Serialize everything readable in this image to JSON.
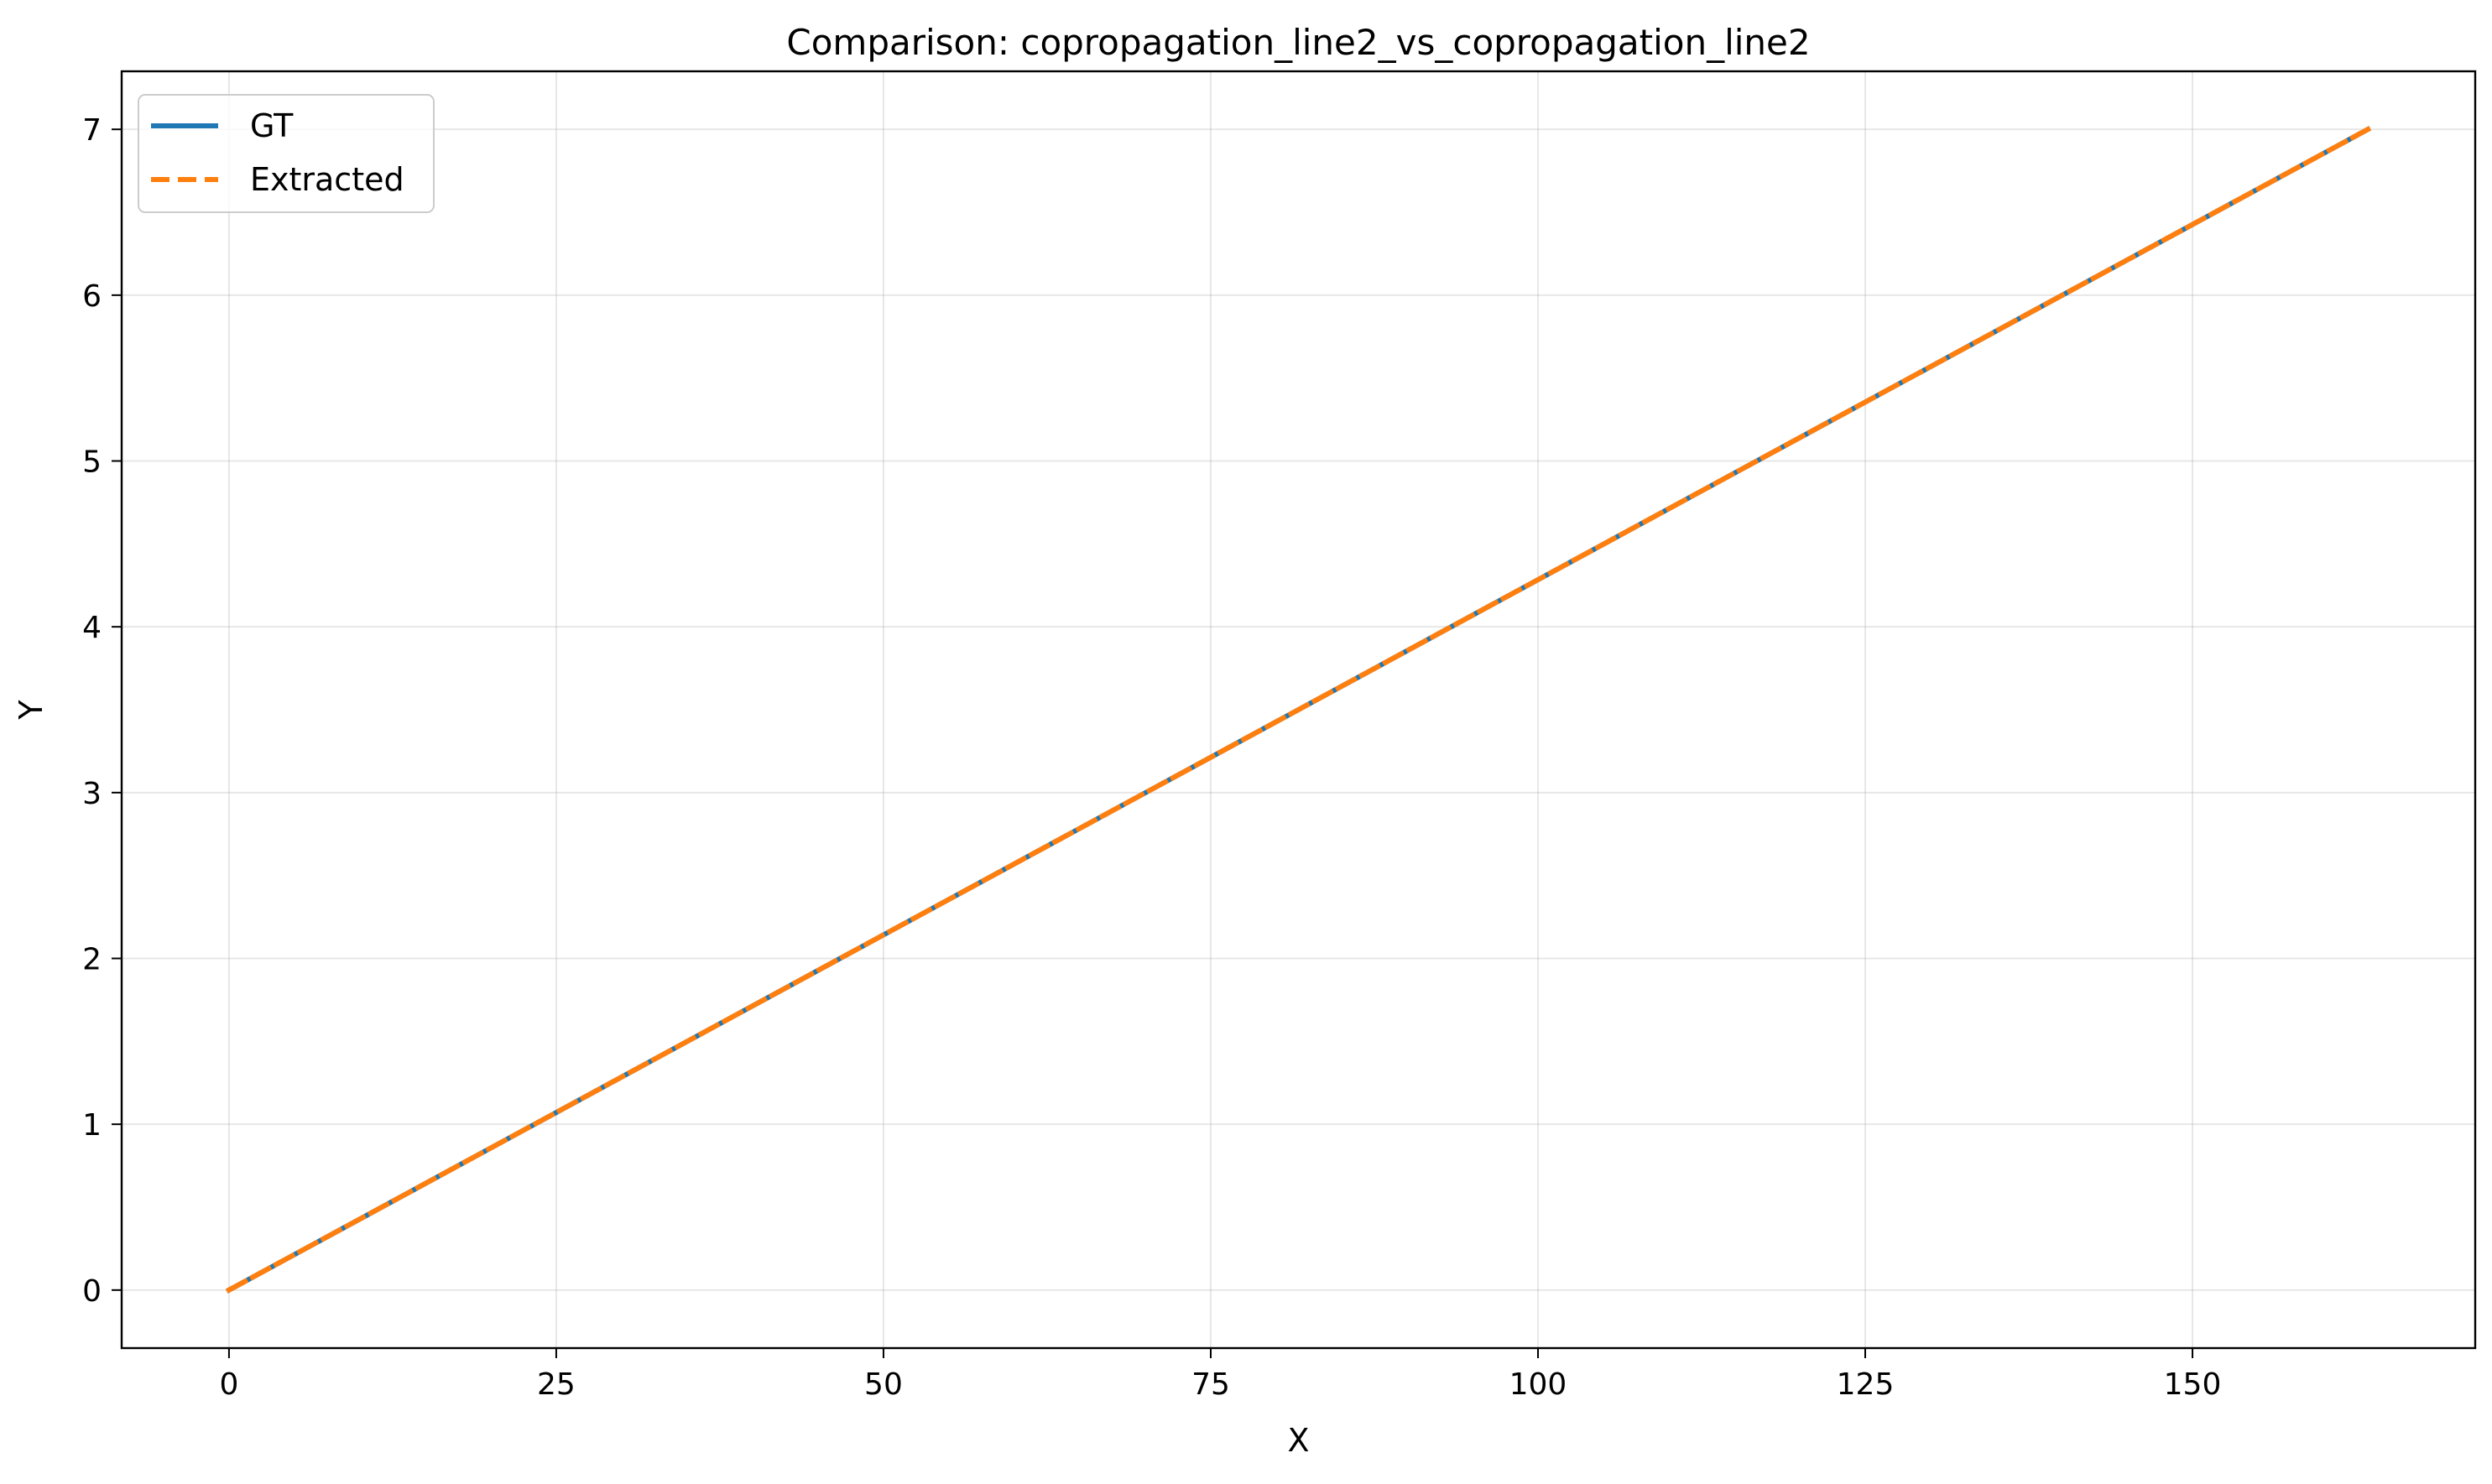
{
  "chart_data": {
    "type": "line",
    "title": "Comparison: copropagation_line2_vs_copropagation_line2",
    "xlabel": "X",
    "ylabel": "Y",
    "xlim": [
      -8.2,
      171.6
    ],
    "ylim": [
      -0.35,
      7.35
    ],
    "xticks": [
      0,
      25,
      50,
      75,
      100,
      125,
      150
    ],
    "yticks": [
      0,
      1,
      2,
      3,
      4,
      5,
      6,
      7
    ],
    "grid": true,
    "legend_position": "top-left",
    "series": [
      {
        "name": "GT",
        "color": "#1f77b4",
        "style": "solid",
        "x": [
          0,
          163.4
        ],
        "y": [
          0,
          7.0
        ]
      },
      {
        "name": "Extracted",
        "color": "#ff7f0e",
        "style": "dashed",
        "x": [
          0,
          163.4
        ],
        "y": [
          0,
          7.0
        ]
      }
    ]
  }
}
